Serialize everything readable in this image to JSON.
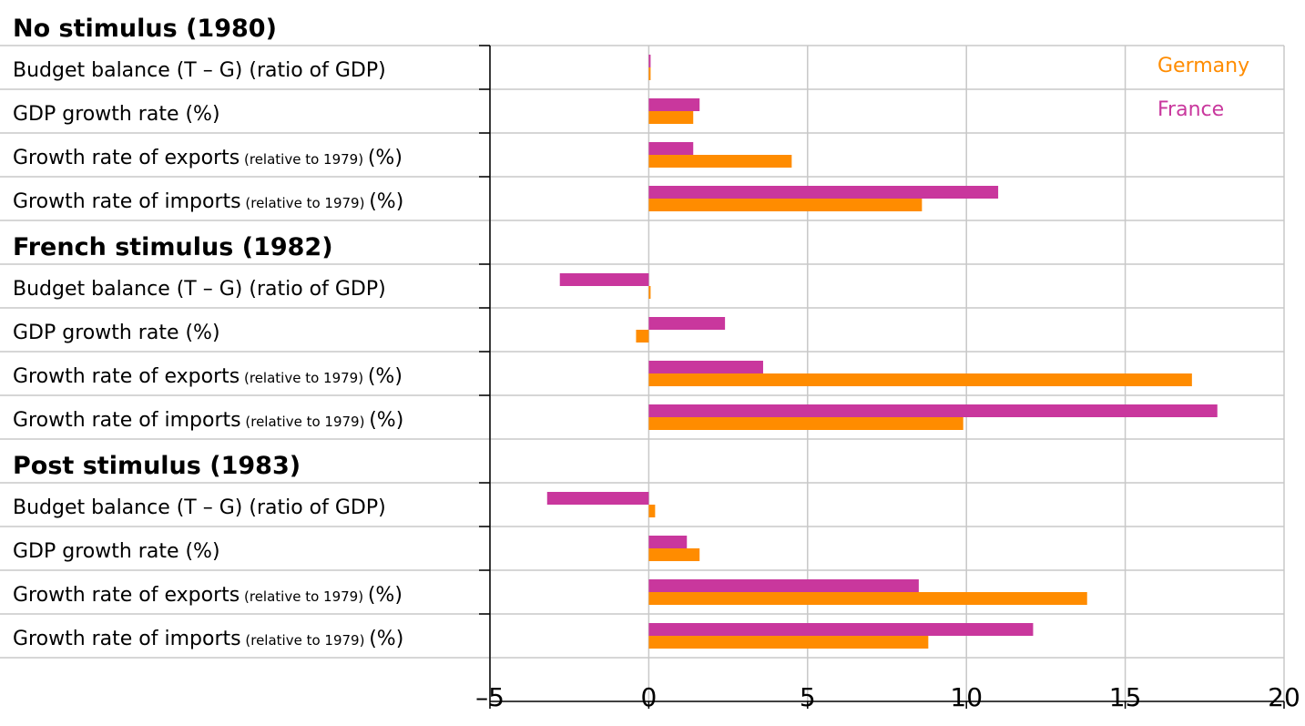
{
  "chart_data": {
    "type": "bar",
    "orientation": "horizontal",
    "title": "",
    "xlabel": "",
    "ylabel": "",
    "xlim": [
      -5,
      20
    ],
    "x_ticks": [
      {
        "value": -5,
        "label": "–5"
      },
      {
        "value": 0,
        "label": "0"
      },
      {
        "value": 5,
        "label": "5"
      },
      {
        "value": 10,
        "label": "10"
      },
      {
        "value": 15,
        "label": "15"
      },
      {
        "value": 20,
        "label": "20"
      }
    ],
    "grid": "vertical gridlines at major ticks, horizontal separators between rows",
    "legend": {
      "placement": "top-right",
      "entries": [
        {
          "name": "Germany",
          "color": "#ff8c00"
        },
        {
          "name": "France",
          "color": "#c9379d"
        }
      ]
    },
    "series": [
      {
        "name": "France",
        "color": "#c9379d",
        "values": [
          0.05,
          1.6,
          1.4,
          11.0,
          -2.8,
          2.4,
          3.6,
          17.9,
          -3.2,
          1.2,
          8.5,
          12.1
        ]
      },
      {
        "name": "Germany",
        "color": "#ff8c00",
        "values": [
          0.05,
          1.4,
          4.5,
          8.6,
          0.05,
          -0.4,
          17.1,
          9.9,
          0.2,
          1.6,
          13.8,
          8.8
        ]
      }
    ],
    "groups": [
      {
        "heading": "No stimulus (1980)",
        "rows": [
          {
            "label": "Budget balance (T – G) (ratio of GDP)",
            "note": ""
          },
          {
            "label": "GDP growth rate (%)",
            "note": ""
          },
          {
            "label": "Growth rate of exports",
            "note": "(relative to 1979)",
            "suffix": "(%)"
          },
          {
            "label": "Growth rate of imports",
            "note": "(relative to 1979)",
            "suffix": "(%)"
          }
        ]
      },
      {
        "heading": "French stimulus (1982)",
        "rows": [
          {
            "label": "Budget balance (T – G) (ratio of GDP)",
            "note": ""
          },
          {
            "label": "GDP growth rate (%)",
            "note": ""
          },
          {
            "label": "Growth rate of exports",
            "note": "(relative to 1979)",
            "suffix": "(%)"
          },
          {
            "label": "Growth rate of imports",
            "note": "(relative to 1979)",
            "suffix": "(%)"
          }
        ]
      },
      {
        "heading": "Post stimulus (1983)",
        "rows": [
          {
            "label": "Budget balance (T – G) (ratio of GDP)",
            "note": ""
          },
          {
            "label": "GDP growth rate (%)",
            "note": ""
          },
          {
            "label": "Growth rate of exports",
            "note": "(relative to 1979)",
            "suffix": "(%)"
          },
          {
            "label": "Growth rate of imports",
            "note": "(relative to 1979)",
            "suffix": "(%)"
          }
        ]
      }
    ]
  }
}
